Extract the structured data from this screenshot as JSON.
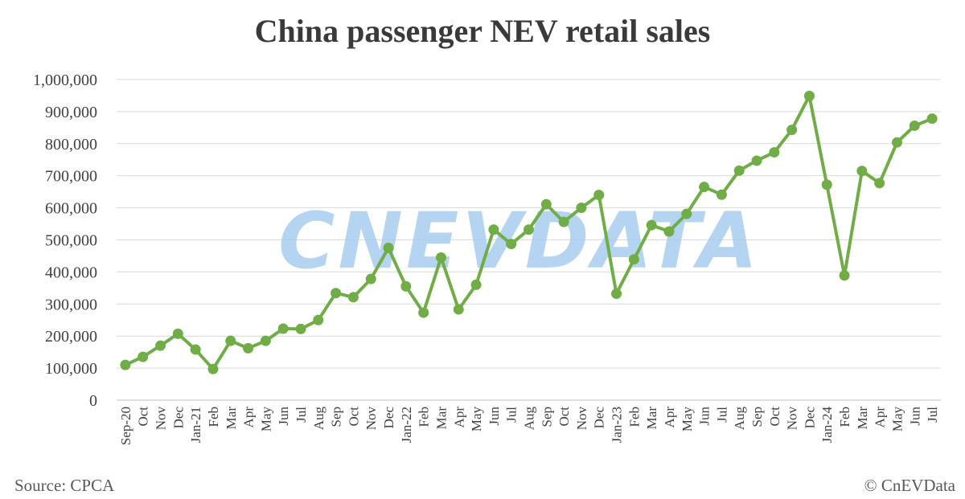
{
  "chart_data": {
    "type": "line",
    "title": "China passenger NEV retail sales",
    "source": "Source: CPCA",
    "copyright": "© CnEVData",
    "watermark": "CNEVDATA",
    "line_color": "#70ad47",
    "grid": true,
    "ylim": [
      0,
      1000000
    ],
    "yticks": [
      "0",
      "100,000",
      "200,000",
      "300,000",
      "400,000",
      "500,000",
      "600,000",
      "700,000",
      "800,000",
      "900,000",
      "1,000,000"
    ],
    "categories": [
      "Sep-20",
      "Oct",
      "Nov",
      "Dec",
      "Jan-21",
      "Feb",
      "Mar",
      "Apr",
      "May",
      "Jun",
      "Jul",
      "Aug",
      "Sep",
      "Oct",
      "Nov",
      "Dec",
      "Jan-22",
      "Feb",
      "Mar",
      "Apr",
      "May",
      "Jun",
      "Jul",
      "Aug",
      "Sep",
      "Oct",
      "Nov",
      "Dec",
      "Jan-23",
      "Feb",
      "Mar",
      "Apr",
      "May",
      "Jun",
      "Jul",
      "Aug",
      "Sep",
      "Oct",
      "Nov",
      "Dec",
      "Jan-24",
      "Feb",
      "Mar",
      "Apr",
      "May",
      "Jun",
      "Jul"
    ],
    "series": [
      {
        "values": [
          110000,
          135000,
          170000,
          207000,
          158000,
          97000,
          185000,
          162000,
          185000,
          223000,
          222000,
          250000,
          334000,
          321000,
          378000,
          475000,
          355000,
          273000,
          445000,
          283000,
          360000,
          532000,
          487000,
          532000,
          611000,
          556000,
          600000,
          640000,
          332000,
          439000,
          546000,
          526000,
          581000,
          665000,
          641000,
          716000,
          747000,
          773000,
          843000,
          949000,
          672000,
          389000,
          715000,
          677000,
          804000,
          856000,
          878000
        ]
      }
    ]
  }
}
